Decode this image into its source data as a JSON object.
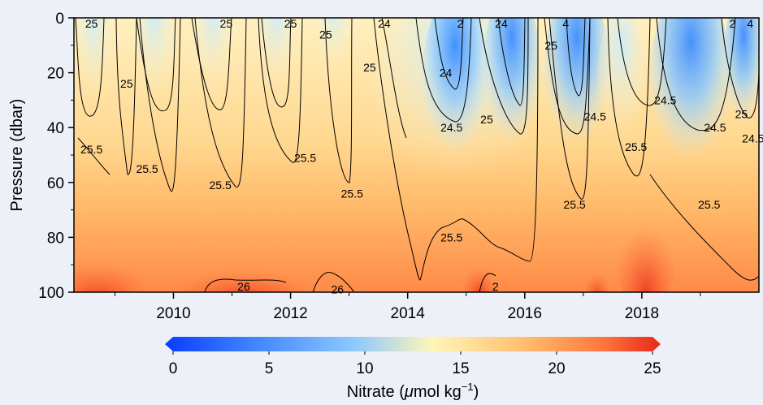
{
  "chart_data": {
    "type": "heatmap",
    "xlabel": "",
    "ylabel": "Pressure (dbar)",
    "colorbar_label_main": "Nitrate (",
    "colorbar_label_mu": "μ",
    "colorbar_label_unit": "mol kg",
    "colorbar_label_sup": "−1",
    "colorbar_label_close": ")",
    "x_range": [
      2008.3,
      2020.0
    ],
    "y_range": [
      0,
      100
    ],
    "y_inverted": true,
    "x_ticks": [
      2010,
      2012,
      2014,
      2016,
      2018
    ],
    "x_tick_labels": [
      "2010",
      "2012",
      "2014",
      "2016",
      "2018"
    ],
    "y_ticks": [
      0,
      20,
      40,
      60,
      80,
      100
    ],
    "y_tick_labels": [
      "0",
      "20",
      "40",
      "60",
      "80",
      "100"
    ],
    "colorbar_range": [
      0,
      25
    ],
    "colorbar_ticks": [
      0,
      5,
      10,
      15,
      20,
      25
    ],
    "colorbar_tick_labels": [
      "0",
      "5",
      "10",
      "15",
      "20",
      "25"
    ],
    "colormap": [
      "#0a3cff",
      "#3c82ff",
      "#8cc8ff",
      "#fff6b8",
      "#ffc070",
      "#ff7840",
      "#e82818"
    ],
    "contour_levels": [
      "24",
      "24.5",
      "25",
      "25.5",
      "26"
    ],
    "contour_labels": [
      {
        "text": "25",
        "x": 2008.6,
        "y": 2
      },
      {
        "text": "25",
        "x": 2009.2,
        "y": 24
      },
      {
        "text": "25",
        "x": 2010.9,
        "y": 2
      },
      {
        "text": "25",
        "x": 2012.0,
        "y": 2
      },
      {
        "text": "25",
        "x": 2012.6,
        "y": 6
      },
      {
        "text": "25",
        "x": 2013.35,
        "y": 18
      },
      {
        "text": "24",
        "x": 2013.6,
        "y": 2
      },
      {
        "text": "24",
        "x": 2014.65,
        "y": 20
      },
      {
        "text": "24",
        "x": 2015.6,
        "y": 2
      },
      {
        "text": "2",
        "x": 2014.9,
        "y": 2
      },
      {
        "text": "25",
        "x": 2015.35,
        "y": 37
      },
      {
        "text": "24.5",
        "x": 2014.75,
        "y": 40
      },
      {
        "text": "25",
        "x": 2016.45,
        "y": 10
      },
      {
        "text": "4",
        "x": 2016.7,
        "y": 2
      },
      {
        "text": "24.5",
        "x": 2017.2,
        "y": 36
      },
      {
        "text": "24.5",
        "x": 2018.4,
        "y": 30
      },
      {
        "text": "24.5",
        "x": 2019.25,
        "y": 40
      },
      {
        "text": "25",
        "x": 2019.7,
        "y": 35
      },
      {
        "text": "24.5",
        "x": 2019.9,
        "y": 44
      },
      {
        "text": "2",
        "x": 2019.55,
        "y": 2
      },
      {
        "text": "4",
        "x": 2019.85,
        "y": 2
      },
      {
        "text": "25.5",
        "x": 2008.6,
        "y": 48
      },
      {
        "text": "25.5",
        "x": 2009.55,
        "y": 55
      },
      {
        "text": "25.5",
        "x": 2010.8,
        "y": 61
      },
      {
        "text": "25.5",
        "x": 2012.25,
        "y": 51
      },
      {
        "text": "25.5",
        "x": 2013.05,
        "y": 64
      },
      {
        "text": "25.5",
        "x": 2014.75,
        "y": 80
      },
      {
        "text": "25.5",
        "x": 2016.85,
        "y": 68
      },
      {
        "text": "25.5",
        "x": 2017.9,
        "y": 47
      },
      {
        "text": "25.5",
        "x": 2019.15,
        "y": 68
      },
      {
        "text": "26",
        "x": 2011.2,
        "y": 98
      },
      {
        "text": "26",
        "x": 2012.8,
        "y": 99
      },
      {
        "text": "2",
        "x": 2015.5,
        "y": 98
      }
    ]
  }
}
